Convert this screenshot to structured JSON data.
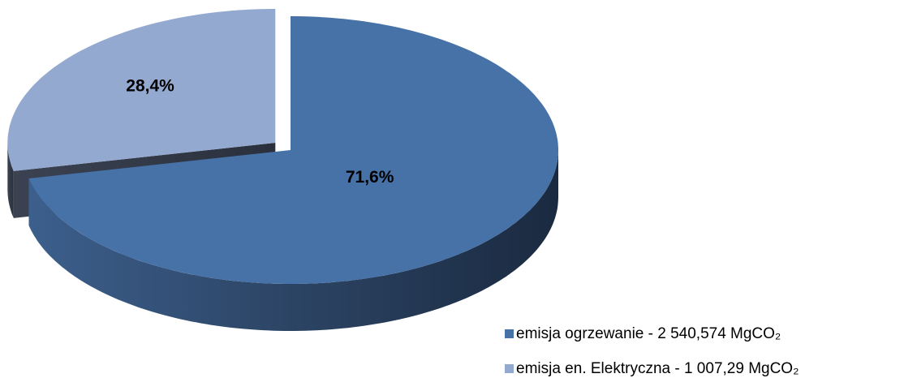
{
  "chart_data": {
    "type": "pie",
    "categories": [
      "emisja ogrzewanie - 2 540,574 MgCO₂",
      "emisja en. Elektryczna - 1 007,29 MgCO₂"
    ],
    "values": [
      71.6,
      28.4
    ],
    "value_labels": [
      "71,6%",
      "28,4%"
    ],
    "colors": [
      "#4672a8",
      "#94a9d0"
    ],
    "legend": "bottom-right",
    "three_d": true
  }
}
